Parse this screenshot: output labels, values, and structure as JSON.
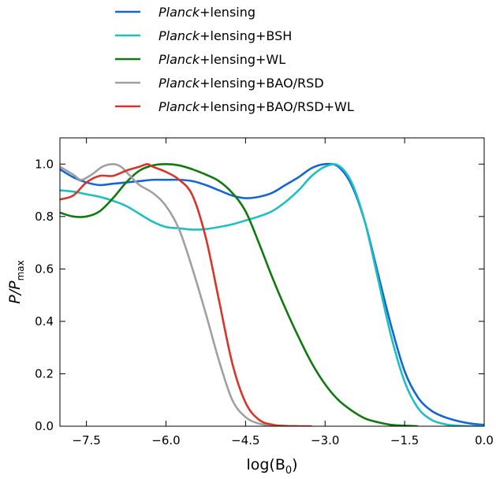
{
  "chart_data": {
    "type": "line",
    "xlabel": "log(B",
    "xlabel_sub": "0",
    "ylabel": "P/P",
    "ylabel_sub": "max",
    "xlim": [
      -8.0,
      0.0
    ],
    "ylim": [
      0.0,
      1.1
    ],
    "xticks": [
      -7.5,
      -6.0,
      -4.5,
      -3.0,
      -1.5,
      0.0
    ],
    "xtick_labels": [
      "−7.5",
      "−6.0",
      "−4.5",
      "−3.0",
      "−1.5",
      "0.0"
    ],
    "yticks": [
      0.0,
      0.2,
      0.4,
      0.6,
      0.8,
      1.0
    ],
    "ytick_labels": [
      "0.0",
      "0.2",
      "0.4",
      "0.6",
      "0.8",
      "1.0"
    ],
    "grid": false,
    "legend_placement": "above",
    "series": [
      {
        "name_italic": "Planck",
        "name_rest": "+lensing",
        "color": "#1565d8",
        "x": [
          -8.0,
          -7.75,
          -7.5,
          -7.25,
          -7.0,
          -6.75,
          -6.5,
          -6.25,
          -6.0,
          -5.75,
          -5.5,
          -5.25,
          -5.0,
          -4.75,
          -4.5,
          -4.25,
          -4.0,
          -3.75,
          -3.5,
          -3.25,
          -3.0,
          -2.75,
          -2.5,
          -2.25,
          -2.0,
          -1.75,
          -1.5,
          -1.25,
          -1.0,
          -0.75,
          -0.5,
          -0.25,
          0.0
        ],
        "y": [
          0.98,
          0.95,
          0.93,
          0.92,
          0.925,
          0.93,
          0.935,
          0.94,
          0.94,
          0.94,
          0.935,
          0.92,
          0.9,
          0.88,
          0.87,
          0.875,
          0.89,
          0.92,
          0.95,
          0.985,
          1.0,
          0.99,
          0.92,
          0.78,
          0.58,
          0.38,
          0.21,
          0.11,
          0.06,
          0.035,
          0.02,
          0.01,
          0.005
        ]
      },
      {
        "name_italic": "Planck",
        "name_rest": "+lensing+BSH",
        "color": "#1fbfbf",
        "x": [
          -8.0,
          -7.75,
          -7.5,
          -7.25,
          -7.0,
          -6.75,
          -6.5,
          -6.25,
          -6.0,
          -5.75,
          -5.5,
          -5.25,
          -5.0,
          -4.75,
          -4.5,
          -4.25,
          -4.0,
          -3.75,
          -3.5,
          -3.25,
          -3.0,
          -2.75,
          -2.5,
          -2.25,
          -2.0,
          -1.75,
          -1.5,
          -1.25,
          -1.0,
          -0.75,
          -0.5,
          -0.25,
          0.0
        ],
        "y": [
          0.9,
          0.895,
          0.885,
          0.875,
          0.86,
          0.84,
          0.81,
          0.78,
          0.76,
          0.755,
          0.75,
          0.752,
          0.76,
          0.77,
          0.785,
          0.8,
          0.82,
          0.855,
          0.9,
          0.955,
          0.99,
          0.995,
          0.93,
          0.78,
          0.56,
          0.34,
          0.17,
          0.07,
          0.025,
          0.008,
          0.002,
          0.0,
          0.0
        ]
      },
      {
        "name_italic": "Planck",
        "name_rest": "+lensing+WL",
        "color": "#0f7a0f",
        "x": [
          -8.0,
          -7.75,
          -7.5,
          -7.25,
          -7.0,
          -6.75,
          -6.5,
          -6.25,
          -6.0,
          -5.75,
          -5.5,
          -5.25,
          -5.0,
          -4.75,
          -4.5,
          -4.25,
          -4.0,
          -3.75,
          -3.5,
          -3.25,
          -3.0,
          -2.75,
          -2.5,
          -2.25,
          -2.0,
          -1.75,
          -1.5,
          -1.25
        ],
        "y": [
          0.815,
          0.8,
          0.8,
          0.82,
          0.87,
          0.93,
          0.975,
          0.995,
          1.0,
          0.995,
          0.98,
          0.96,
          0.935,
          0.89,
          0.82,
          0.7,
          0.57,
          0.45,
          0.34,
          0.24,
          0.16,
          0.1,
          0.06,
          0.03,
          0.015,
          0.005,
          0.002,
          0.0
        ]
      },
      {
        "name_italic": "Planck",
        "name_rest": "+lensing+BAO/RSD",
        "color": "#a0a0a0",
        "x": [
          -8.0,
          -7.75,
          -7.6,
          -7.4,
          -7.2,
          -7.0,
          -6.85,
          -6.7,
          -6.5,
          -6.25,
          -6.0,
          -5.75,
          -5.5,
          -5.25,
          -5.0,
          -4.75,
          -4.5,
          -4.25,
          -4.0,
          -3.75,
          -3.5
        ],
        "y": [
          0.99,
          0.96,
          0.94,
          0.96,
          0.99,
          1.0,
          0.99,
          0.96,
          0.92,
          0.89,
          0.84,
          0.75,
          0.6,
          0.43,
          0.25,
          0.1,
          0.035,
          0.01,
          0.003,
          0.001,
          0.0
        ]
      },
      {
        "name_italic": "Planck",
        "name_rest": "+lensing+BAO/RSD+WL",
        "color": "#d8352a",
        "x": [
          -8.0,
          -7.75,
          -7.5,
          -7.25,
          -7.0,
          -6.75,
          -6.5,
          -6.35,
          -6.25,
          -6.0,
          -5.75,
          -5.5,
          -5.25,
          -5.0,
          -4.75,
          -4.5,
          -4.25,
          -4.0,
          -3.75,
          -3.5,
          -3.25
        ],
        "y": [
          0.865,
          0.88,
          0.93,
          0.955,
          0.955,
          0.975,
          0.99,
          1.0,
          0.99,
          0.97,
          0.94,
          0.88,
          0.72,
          0.48,
          0.24,
          0.09,
          0.025,
          0.006,
          0.001,
          0.0,
          0.0
        ]
      }
    ]
  }
}
